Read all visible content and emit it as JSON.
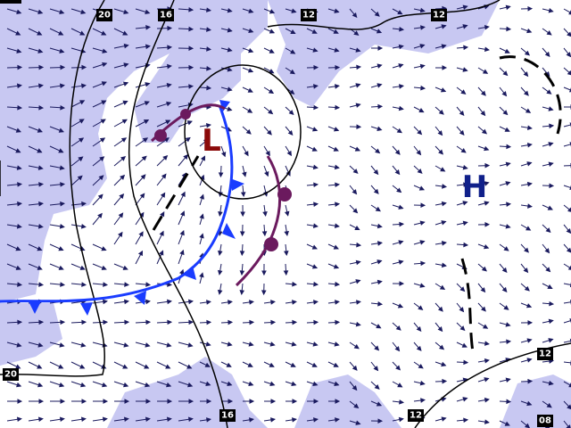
{
  "pressure_centers": [
    {
      "label": "L"
    },
    {
      "label": "H"
    }
  ],
  "isobar_labels": [
    "20",
    "16",
    "12",
    "12",
    "12",
    "20",
    "16",
    "12",
    "08"
  ]
}
